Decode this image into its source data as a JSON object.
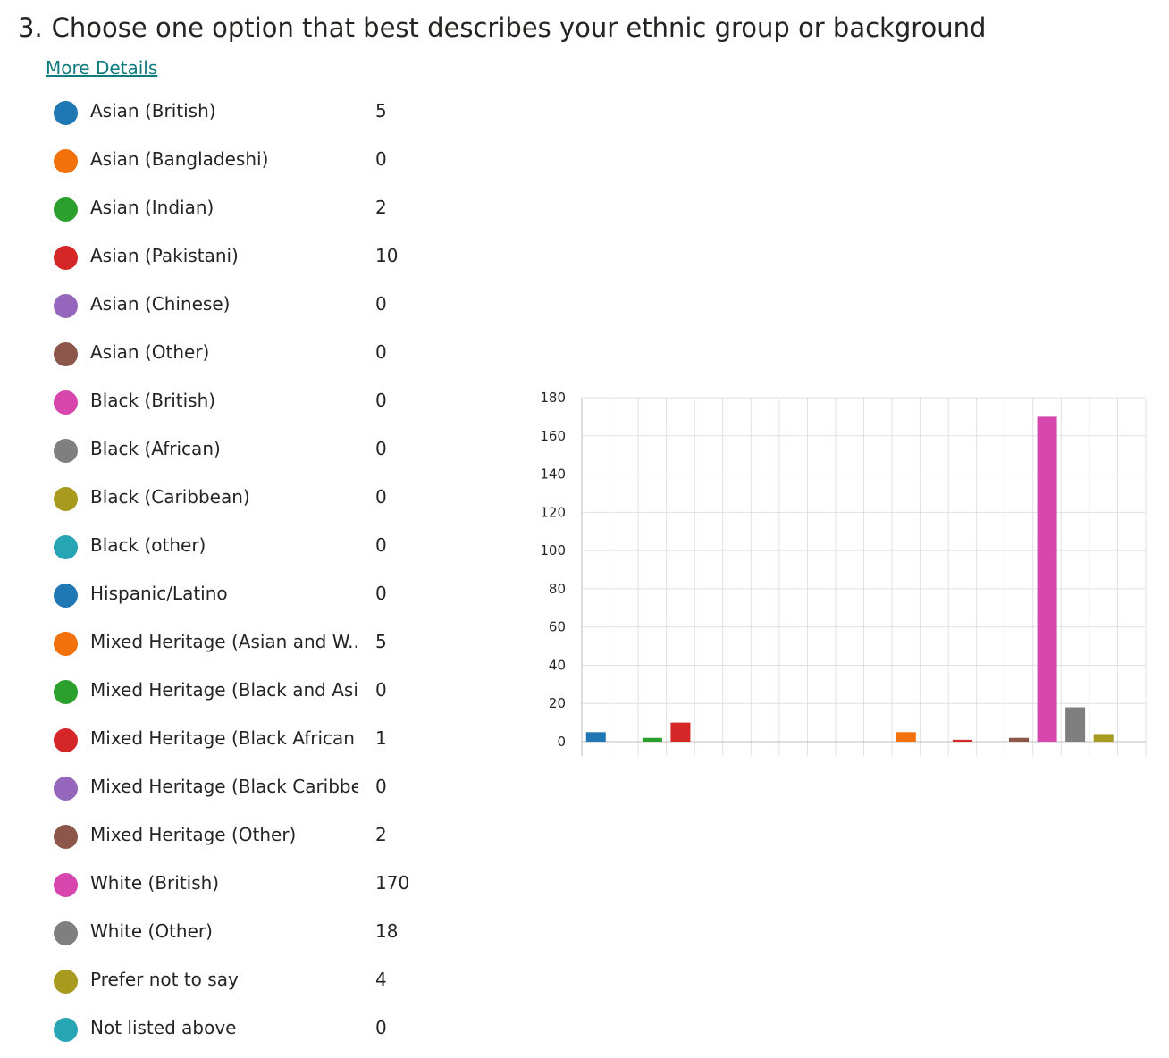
{
  "question": {
    "number": "3.",
    "title": "Choose one option that best describes your ethnic group or background",
    "more_details": "More Details"
  },
  "legend": [
    {
      "label": "Asian (British)",
      "count": "5",
      "color": "#1f77b4"
    },
    {
      "label": "Asian (Bangladeshi)",
      "count": "0",
      "color": "#f2710b"
    },
    {
      "label": "Asian (Indian)",
      "count": "2",
      "color": "#2ca02c"
    },
    {
      "label": "Asian (Pakistani)",
      "count": "10",
      "color": "#d62728"
    },
    {
      "label": "Asian (Chinese)",
      "count": "0",
      "color": "#9467bd"
    },
    {
      "label": "Asian (Other)",
      "count": "0",
      "color": "#8c564b"
    },
    {
      "label": "Black (British)",
      "count": "0",
      "color": "#d646ad"
    },
    {
      "label": "Black (African)",
      "count": "0",
      "color": "#7f7f7f"
    },
    {
      "label": "Black (Caribbean)",
      "count": "0",
      "color": "#a79a1f"
    },
    {
      "label": "Black (other)",
      "count": "0",
      "color": "#27a5b5"
    },
    {
      "label": "Hispanic/Latino",
      "count": "0",
      "color": "#1f77b4"
    },
    {
      "label": "Mixed Heritage (Asian and W...",
      "count": "5",
      "color": "#f2710b"
    },
    {
      "label": "Mixed Heritage (Black and Asi...",
      "count": "0",
      "color": "#2ca02c"
    },
    {
      "label": "Mixed Heritage (Black African ...",
      "count": "1",
      "color": "#d62728"
    },
    {
      "label": "Mixed Heritage (Black Caribbe...",
      "count": "0",
      "color": "#9467bd"
    },
    {
      "label": "Mixed Heritage (Other)",
      "count": "2",
      "color": "#8c564b"
    },
    {
      "label": "White (British)",
      "count": "170",
      "color": "#d646ad"
    },
    {
      "label": "White (Other)",
      "count": "18",
      "color": "#7f7f7f"
    },
    {
      "label": "Prefer not to say",
      "count": "4",
      "color": "#a79a1f"
    },
    {
      "label": "Not listed above",
      "count": "0",
      "color": "#27a5b5"
    }
  ],
  "chart_data": {
    "type": "bar",
    "categories": [
      "Asian (British)",
      "Asian (Bangladeshi)",
      "Asian (Indian)",
      "Asian (Pakistani)",
      "Asian (Chinese)",
      "Asian (Other)",
      "Black (British)",
      "Black (African)",
      "Black (Caribbean)",
      "Black (other)",
      "Hispanic/Latino",
      "Mixed Heritage (Asian and W...",
      "Mixed Heritage (Black and Asi...",
      "Mixed Heritage (Black African ...",
      "Mixed Heritage (Black Caribbe...",
      "Mixed Heritage (Other)",
      "White (British)",
      "White (Other)",
      "Prefer not to say",
      "Not listed above"
    ],
    "values": [
      5,
      0,
      2,
      10,
      0,
      0,
      0,
      0,
      0,
      0,
      0,
      5,
      0,
      1,
      0,
      2,
      170,
      18,
      4,
      0
    ],
    "colors": [
      "#1f77b4",
      "#f2710b",
      "#2ca02c",
      "#d62728",
      "#9467bd",
      "#8c564b",
      "#d646ad",
      "#7f7f7f",
      "#a79a1f",
      "#27a5b5",
      "#1f77b4",
      "#f2710b",
      "#2ca02c",
      "#d62728",
      "#9467bd",
      "#8c564b",
      "#d646ad",
      "#7f7f7f",
      "#a79a1f",
      "#27a5b5"
    ],
    "yticks": [
      "0",
      "20",
      "40",
      "60",
      "80",
      "100",
      "120",
      "140",
      "160",
      "180"
    ],
    "ylim": [
      0,
      180
    ],
    "grid": true
  }
}
